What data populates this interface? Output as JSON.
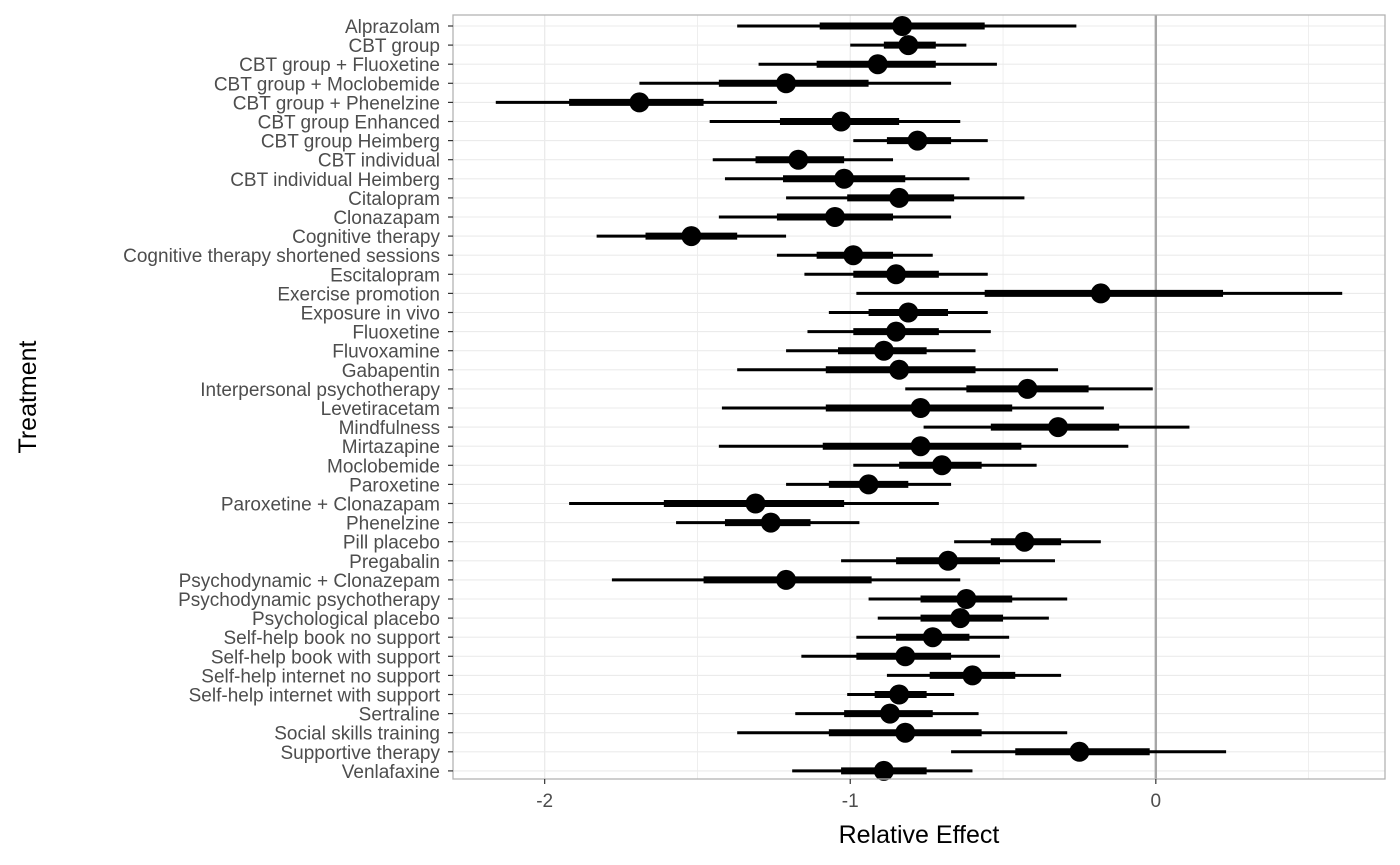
{
  "chart_data": {
    "type": "forest",
    "xlabel": "Relative Effect",
    "ylabel": "Treatment",
    "xlim": [
      -2.3,
      0.75
    ],
    "xticks": [
      -2,
      -1,
      0
    ],
    "xtick_labels": [
      "-2",
      "-1",
      "0"
    ],
    "reference_line": 0,
    "grid": true,
    "colors": {
      "points": "#000000",
      "reference_line": "#a6a6a6",
      "panel_border": "#b3b3b3",
      "grid": "#ebebeb"
    },
    "rows": [
      {
        "label": "Alprazolam",
        "median": -0.83,
        "inner": [
          -1.1,
          -0.56
        ],
        "outer": [
          -1.37,
          -0.26
        ]
      },
      {
        "label": "CBT group",
        "median": -0.81,
        "inner": [
          -0.89,
          -0.72
        ],
        "outer": [
          -1.0,
          -0.62
        ]
      },
      {
        "label": "CBT group + Fluoxetine",
        "median": -0.91,
        "inner": [
          -1.11,
          -0.72
        ],
        "outer": [
          -1.3,
          -0.52
        ]
      },
      {
        "label": "CBT group + Moclobemide",
        "median": -1.21,
        "inner": [
          -1.43,
          -0.94
        ],
        "outer": [
          -1.69,
          -0.67
        ]
      },
      {
        "label": "CBT group + Phenelzine",
        "median": -1.69,
        "inner": [
          -1.92,
          -1.48
        ],
        "outer": [
          -2.16,
          -1.24
        ]
      },
      {
        "label": "CBT group Enhanced",
        "median": -1.03,
        "inner": [
          -1.23,
          -0.84
        ],
        "outer": [
          -1.46,
          -0.64
        ]
      },
      {
        "label": "CBT group Heimberg",
        "median": -0.78,
        "inner": [
          -0.88,
          -0.67
        ],
        "outer": [
          -0.99,
          -0.55
        ]
      },
      {
        "label": "CBT individual",
        "median": -1.17,
        "inner": [
          -1.31,
          -1.02
        ],
        "outer": [
          -1.45,
          -0.86
        ]
      },
      {
        "label": "CBT individual Heimberg",
        "median": -1.02,
        "inner": [
          -1.22,
          -0.82
        ],
        "outer": [
          -1.41,
          -0.61
        ]
      },
      {
        "label": "Citalopram",
        "median": -0.84,
        "inner": [
          -1.01,
          -0.66
        ],
        "outer": [
          -1.21,
          -0.43
        ]
      },
      {
        "label": "Clonazapam",
        "median": -1.05,
        "inner": [
          -1.24,
          -0.86
        ],
        "outer": [
          -1.43,
          -0.67
        ]
      },
      {
        "label": "Cognitive therapy",
        "median": -1.52,
        "inner": [
          -1.67,
          -1.37
        ],
        "outer": [
          -1.83,
          -1.21
        ]
      },
      {
        "label": "Cognitive therapy shortened sessions",
        "median": -0.99,
        "inner": [
          -1.11,
          -0.86
        ],
        "outer": [
          -1.24,
          -0.73
        ]
      },
      {
        "label": "Escitalopram",
        "median": -0.85,
        "inner": [
          -0.99,
          -0.71
        ],
        "outer": [
          -1.15,
          -0.55
        ]
      },
      {
        "label": "Exercise promotion",
        "median": -0.18,
        "inner": [
          -0.56,
          0.22
        ],
        "outer": [
          -0.98,
          0.61
        ]
      },
      {
        "label": "Exposure in vivo",
        "median": -0.81,
        "inner": [
          -0.94,
          -0.68
        ],
        "outer": [
          -1.07,
          -0.55
        ]
      },
      {
        "label": "Fluoxetine",
        "median": -0.85,
        "inner": [
          -0.99,
          -0.71
        ],
        "outer": [
          -1.14,
          -0.54
        ]
      },
      {
        "label": "Fluvoxamine",
        "median": -0.89,
        "inner": [
          -1.04,
          -0.75
        ],
        "outer": [
          -1.21,
          -0.59
        ]
      },
      {
        "label": "Gabapentin",
        "median": -0.84,
        "inner": [
          -1.08,
          -0.59
        ],
        "outer": [
          -1.37,
          -0.32
        ]
      },
      {
        "label": "Interpersonal psychotherapy",
        "median": -0.42,
        "inner": [
          -0.62,
          -0.22
        ],
        "outer": [
          -0.82,
          -0.01
        ]
      },
      {
        "label": "Levetiracetam",
        "median": -0.77,
        "inner": [
          -1.08,
          -0.47
        ],
        "outer": [
          -1.42,
          -0.17
        ]
      },
      {
        "label": "Mindfulness",
        "median": -0.32,
        "inner": [
          -0.54,
          -0.12
        ],
        "outer": [
          -0.76,
          0.11
        ]
      },
      {
        "label": "Mirtazapine",
        "median": -0.77,
        "inner": [
          -1.09,
          -0.44
        ],
        "outer": [
          -1.43,
          -0.09
        ]
      },
      {
        "label": "Moclobemide",
        "median": -0.7,
        "inner": [
          -0.84,
          -0.57
        ],
        "outer": [
          -0.99,
          -0.39
        ]
      },
      {
        "label": "Paroxetine",
        "median": -0.94,
        "inner": [
          -1.07,
          -0.81
        ],
        "outer": [
          -1.21,
          -0.67
        ]
      },
      {
        "label": "Paroxetine + Clonazapam",
        "median": -1.31,
        "inner": [
          -1.61,
          -1.02
        ],
        "outer": [
          -1.92,
          -0.71
        ]
      },
      {
        "label": "Phenelzine",
        "median": -1.26,
        "inner": [
          -1.41,
          -1.13
        ],
        "outer": [
          -1.57,
          -0.97
        ]
      },
      {
        "label": "Pill placebo",
        "median": -0.43,
        "inner": [
          -0.54,
          -0.31
        ],
        "outer": [
          -0.66,
          -0.18
        ]
      },
      {
        "label": "Pregabalin",
        "median": -0.68,
        "inner": [
          -0.85,
          -0.51
        ],
        "outer": [
          -1.03,
          -0.33
        ]
      },
      {
        "label": "Psychodynamic + Clonazepam",
        "median": -1.21,
        "inner": [
          -1.48,
          -0.93
        ],
        "outer": [
          -1.78,
          -0.64
        ]
      },
      {
        "label": "Psychodynamic psychotherapy",
        "median": -0.62,
        "inner": [
          -0.77,
          -0.47
        ],
        "outer": [
          -0.94,
          -0.29
        ]
      },
      {
        "label": "Psychological placebo",
        "median": -0.64,
        "inner": [
          -0.77,
          -0.5
        ],
        "outer": [
          -0.91,
          -0.35
        ]
      },
      {
        "label": "Self-help book no support",
        "median": -0.73,
        "inner": [
          -0.85,
          -0.61
        ],
        "outer": [
          -0.98,
          -0.48
        ]
      },
      {
        "label": "Self-help book with support",
        "median": -0.82,
        "inner": [
          -0.98,
          -0.67
        ],
        "outer": [
          -1.16,
          -0.51
        ]
      },
      {
        "label": "Self-help internet no support",
        "median": -0.6,
        "inner": [
          -0.74,
          -0.46
        ],
        "outer": [
          -0.88,
          -0.31
        ]
      },
      {
        "label": "Self-help internet with support",
        "median": -0.84,
        "inner": [
          -0.92,
          -0.75
        ],
        "outer": [
          -1.01,
          -0.66
        ]
      },
      {
        "label": "Sertraline",
        "median": -0.87,
        "inner": [
          -1.02,
          -0.73
        ],
        "outer": [
          -1.18,
          -0.58
        ]
      },
      {
        "label": "Social skills training",
        "median": -0.82,
        "inner": [
          -1.07,
          -0.57
        ],
        "outer": [
          -1.37,
          -0.29
        ]
      },
      {
        "label": "Supportive therapy",
        "median": -0.25,
        "inner": [
          -0.46,
          -0.02
        ],
        "outer": [
          -0.67,
          0.23
        ]
      },
      {
        "label": "Venlafaxine",
        "median": -0.89,
        "inner": [
          -1.03,
          -0.75
        ],
        "outer": [
          -1.19,
          -0.6
        ]
      }
    ]
  }
}
